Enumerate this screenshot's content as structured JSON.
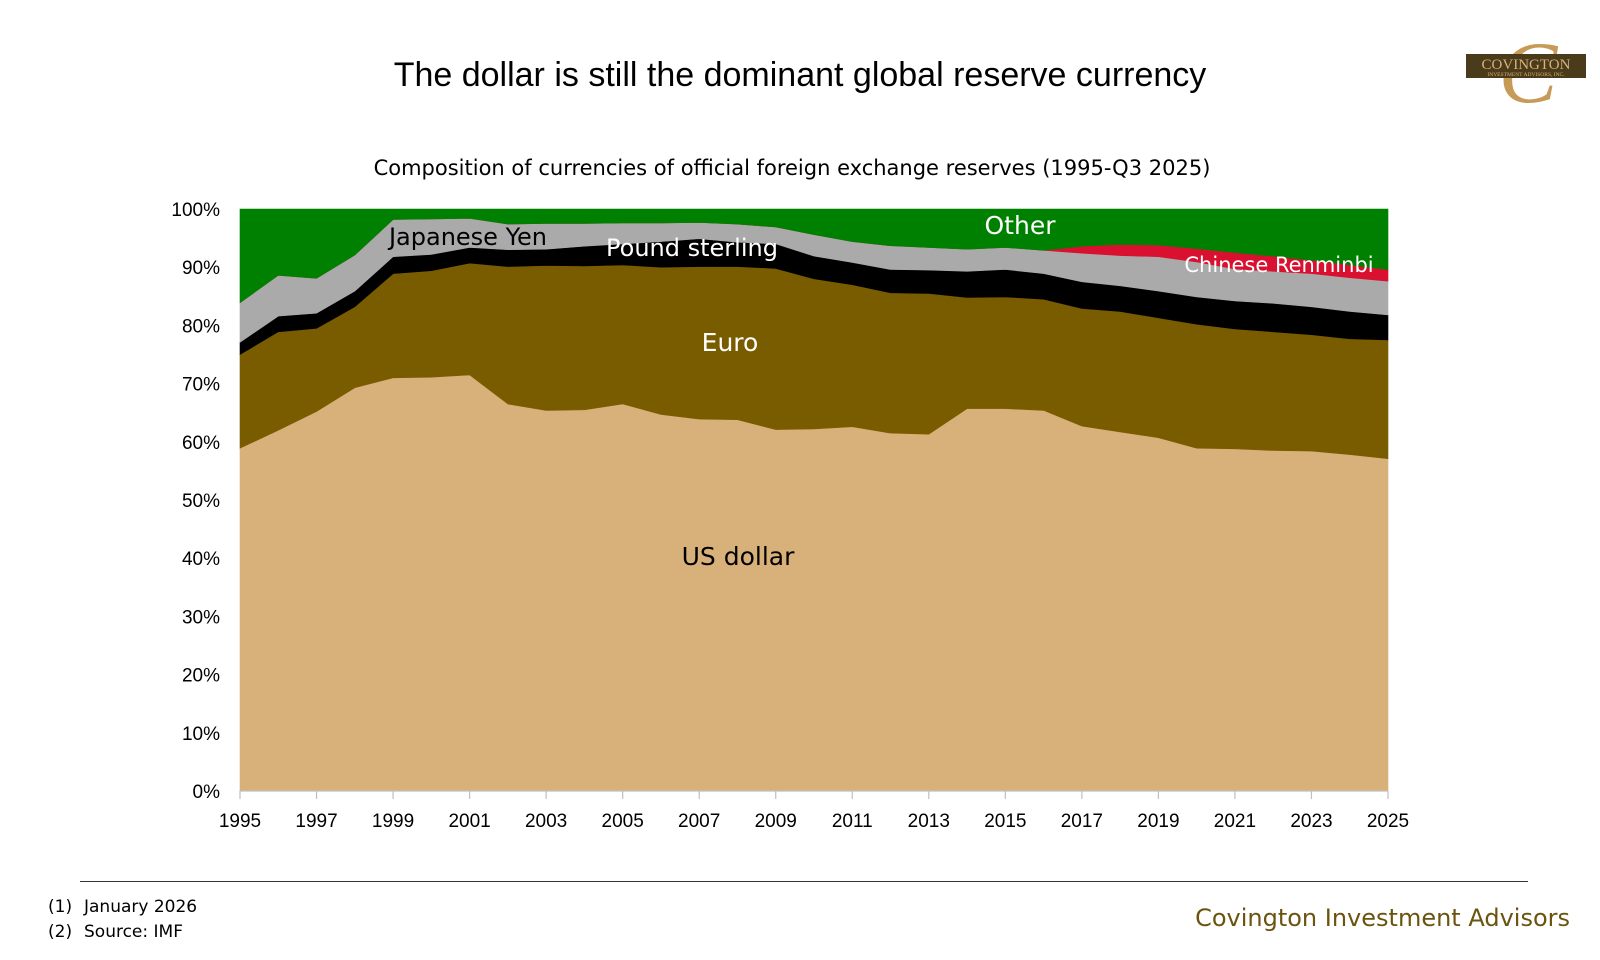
{
  "slide": {
    "title": "The dollar is still the dominant global reserve currency",
    "logo_text_main": "COVINGTON",
    "logo_text_sub": "INVESTMENT ADVISORS, INC."
  },
  "footer": {
    "notes": [
      {
        "num": "(1)",
        "text": "January 2026"
      },
      {
        "num": "(2)",
        "text": "Source: IMF"
      }
    ],
    "brand": "Covington Investment Advisors"
  },
  "chart_data": {
    "type": "area",
    "stacked": true,
    "title": "Composition of currencies of official foreign exchange reserves (1995-Q3 2025)",
    "x": [
      1995,
      1996,
      1997,
      1998,
      1999,
      2000,
      2001,
      2002,
      2003,
      2004,
      2005,
      2006,
      2007,
      2008,
      2009,
      2010,
      2011,
      2012,
      2013,
      2014,
      2015,
      2016,
      2017,
      2018,
      2019,
      2020,
      2021,
      2022,
      2023,
      2024,
      2025
    ],
    "xticks": [
      "1995",
      "1997",
      "1999",
      "2001",
      "2003",
      "2005",
      "2007",
      "2009",
      "2011",
      "2013",
      "2015",
      "2017",
      "2019",
      "2021",
      "2023",
      "2025"
    ],
    "ylim": [
      0,
      100
    ],
    "yticks": [
      "0%",
      "10%",
      "20%",
      "30%",
      "40%",
      "50%",
      "60%",
      "70%",
      "80%",
      "90%",
      "100%"
    ],
    "series": [
      {
        "name": "US dollar",
        "label": "US dollar",
        "color": "#d8b07a",
        "label_color": "#000000",
        "values": [
          58.9,
          62.0,
          65.2,
          69.3,
          71.0,
          71.1,
          71.5,
          66.5,
          65.4,
          65.5,
          66.5,
          64.7,
          63.9,
          63.8,
          62.1,
          62.2,
          62.6,
          61.5,
          61.3,
          65.7,
          65.7,
          65.4,
          62.7,
          61.7,
          60.7,
          58.9,
          58.8,
          58.5,
          58.4,
          57.8,
          57.1
        ]
      },
      {
        "name": "Euro",
        "label": "Euro",
        "color": "#7a5c00",
        "label_color": "#ffffff",
        "values": [
          16.1,
          16.9,
          14.3,
          13.9,
          17.9,
          18.3,
          19.2,
          23.6,
          24.9,
          24.7,
          23.9,
          25.3,
          26.2,
          26.3,
          27.7,
          25.8,
          24.4,
          24.1,
          24.2,
          19.1,
          19.2,
          19.1,
          20.2,
          20.7,
          20.6,
          21.3,
          20.6,
          20.4,
          20.0,
          19.9,
          20.4
        ]
      },
      {
        "name": "Pound sterling",
        "label": "Pound sterling",
        "color": "#000000",
        "label_color": "#ffffff",
        "values": [
          2.1,
          2.7,
          2.6,
          2.7,
          2.9,
          2.8,
          2.7,
          2.9,
          2.8,
          3.4,
          3.6,
          4.4,
          4.8,
          4.2,
          4.2,
          3.9,
          3.8,
          4.0,
          4.0,
          4.5,
          4.7,
          4.4,
          4.6,
          4.4,
          4.6,
          4.7,
          4.8,
          4.9,
          4.8,
          4.7,
          4.3
        ]
      },
      {
        "name": "Japanese Yen",
        "label": "Japanese Yen",
        "color": "#aaaaaa",
        "label_color": "#000000",
        "values": [
          6.8,
          7.0,
          6.0,
          6.2,
          6.4,
          6.1,
          5.0,
          4.4,
          4.4,
          3.9,
          3.6,
          3.2,
          2.8,
          3.1,
          2.9,
          3.7,
          3.6,
          4.1,
          3.9,
          3.8,
          3.8,
          4.0,
          4.9,
          5.2,
          5.9,
          6.0,
          5.5,
          5.5,
          5.7,
          5.8,
          5.8
        ]
      },
      {
        "name": "Chinese Renminbi",
        "label": "Chinese Renminbi",
        "color": "#d9102f",
        "label_color": "#ffffff",
        "values": [
          0,
          0,
          0,
          0,
          0,
          0,
          0,
          0,
          0,
          0,
          0,
          0,
          0,
          0,
          0,
          0,
          0,
          0,
          0,
          0,
          0,
          0,
          1.2,
          1.9,
          2.0,
          2.3,
          2.8,
          2.6,
          2.3,
          2.2,
          2.0
        ]
      },
      {
        "name": "Other",
        "label": "Other",
        "color": "#008000",
        "label_color": "#ffffff",
        "values": [
          16.1,
          11.4,
          11.9,
          7.9,
          1.8,
          1.7,
          1.6,
          2.6,
          2.5,
          2.5,
          2.4,
          2.4,
          2.3,
          2.6,
          3.1,
          4.4,
          5.6,
          6.3,
          6.6,
          6.9,
          6.6,
          7.1,
          6.4,
          6.1,
          6.2,
          6.8,
          7.5,
          8.1,
          8.8,
          9.6,
          10.4
        ]
      }
    ]
  }
}
